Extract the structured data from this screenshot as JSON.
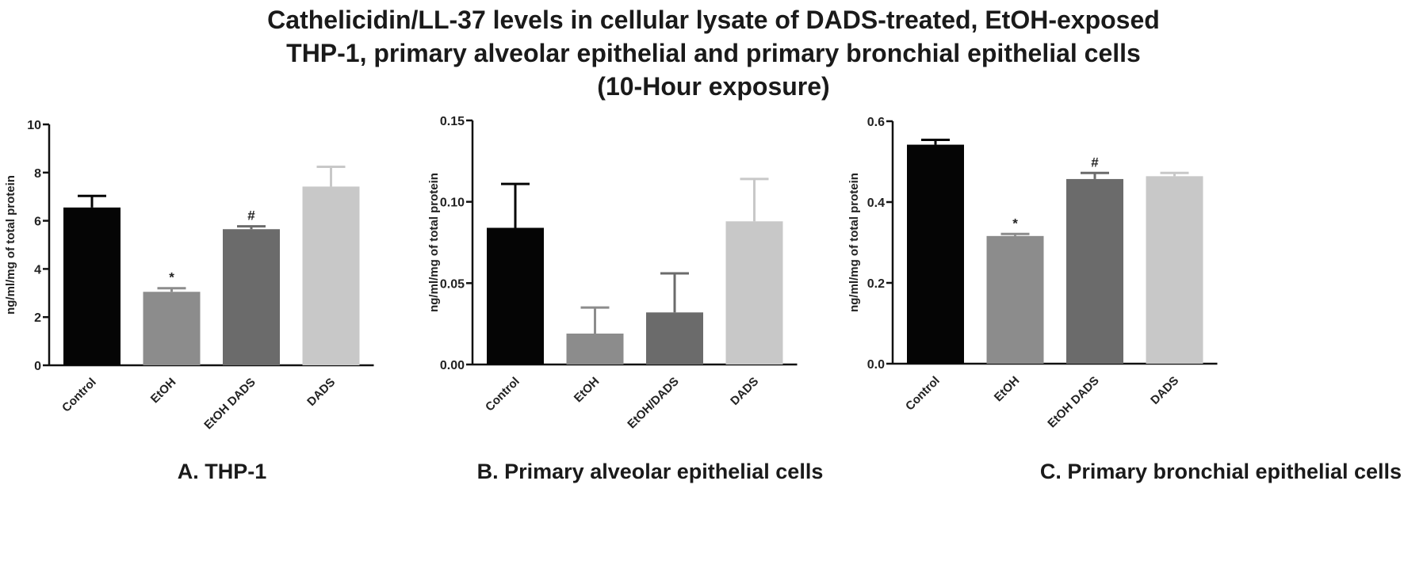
{
  "title_lines": [
    "Cathelicidin/LL-37 levels in cellular lysate of DADS-treated, EtOH-exposed",
    "THP-1, primary alveolar epithelial and primary bronchial epithelial cells",
    "(10-Hour exposure)"
  ],
  "chart_data": [
    {
      "type": "bar",
      "caption": "A. THP-1",
      "ylabel": "ng/ml/mg of total protein",
      "categories": [
        "Control",
        "EtOH",
        "EtOH DADS",
        "DADS"
      ],
      "values": [
        6.55,
        3.05,
        5.65,
        7.42
      ],
      "errors": [
        0.48,
        0.15,
        0.12,
        0.82
      ],
      "annotations": [
        "",
        "*",
        "#",
        ""
      ],
      "colors": [
        "#050505",
        "#8c8c8c",
        "#6b6b6b",
        "#c8c8c8"
      ],
      "ylim": [
        0,
        10
      ],
      "yticks": [
        0,
        2,
        4,
        6,
        8,
        10
      ],
      "ytick_labels": [
        "0",
        "2",
        "4",
        "6",
        "8",
        "10"
      ]
    },
    {
      "type": "bar",
      "caption": "B. Primary alveolar epithelial cells",
      "ylabel": "ng/ml/mg of total protein",
      "categories": [
        "Control",
        "EtOH",
        "EtOH/DADS",
        "DADS"
      ],
      "values": [
        0.084,
        0.019,
        0.032,
        0.088
      ],
      "errors": [
        0.027,
        0.016,
        0.024,
        0.026
      ],
      "annotations": [
        "",
        "",
        "",
        ""
      ],
      "colors": [
        "#050505",
        "#8c8c8c",
        "#6b6b6b",
        "#c8c8c8"
      ],
      "ylim": [
        0,
        0.15
      ],
      "yticks": [
        0,
        0.05,
        0.1,
        0.15
      ],
      "ytick_labels": [
        "0.00",
        "0.05",
        "0.10",
        "0.15"
      ]
    },
    {
      "type": "bar",
      "caption": "C. Primary bronchial epithelial cells",
      "ylabel": "ng/ml/mg of total protein",
      "categories": [
        "Control",
        "EtOH",
        "EtOH DADS",
        "DADS"
      ],
      "values": [
        0.542,
        0.316,
        0.457,
        0.464
      ],
      "errors": [
        0.012,
        0.005,
        0.015,
        0.008
      ],
      "annotations": [
        "",
        "*",
        "#",
        ""
      ],
      "colors": [
        "#050505",
        "#8c8c8c",
        "#6b6b6b",
        "#c8c8c8"
      ],
      "ylim": [
        0,
        0.6
      ],
      "yticks": [
        0,
        0.2,
        0.4,
        0.6
      ],
      "ytick_labels": [
        "0.0",
        "0.2",
        "0.4",
        "0.6"
      ]
    }
  ]
}
